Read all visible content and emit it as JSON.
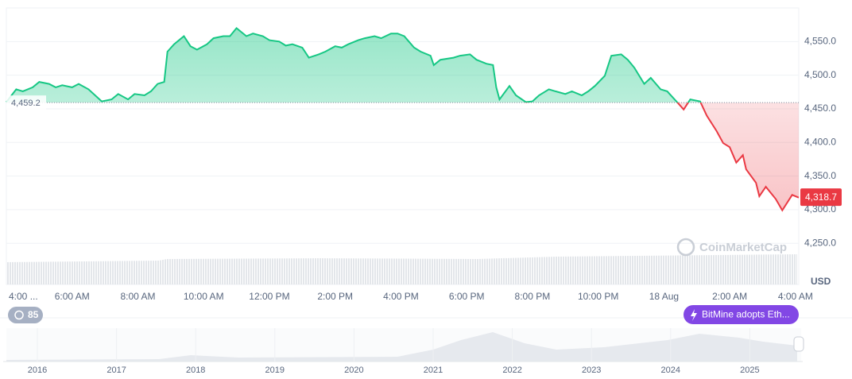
{
  "chart_data": {
    "type": "line",
    "x": [
      0,
      0.3,
      0.5,
      0.8,
      1.0,
      1.3,
      1.5,
      1.7,
      2.0,
      2.2,
      2.5,
      2.7,
      2.9,
      3.2,
      3.4,
      3.7,
      3.9,
      4.2,
      4.4,
      4.6,
      4.8,
      4.9,
      5.1,
      5.4,
      5.6,
      5.8,
      6.1,
      6.3,
      6.6,
      6.8,
      7.0,
      7.3,
      7.5,
      7.8,
      8.0,
      8.3,
      8.5,
      8.7,
      9.0,
      9.2,
      9.5,
      9.7,
      10.0,
      10.2,
      10.4,
      10.7,
      10.9,
      11.2,
      11.4,
      11.7,
      11.9,
      12.1,
      12.4,
      12.6,
      12.9,
      13.0,
      13.2,
      13.6,
      13.8,
      14.1,
      14.3,
      14.6,
      14.8,
      14.9,
      15.0,
      15.3,
      15.5,
      15.8,
      16.0,
      16.2,
      16.5,
      16.7,
      17.0,
      17.2,
      17.5,
      17.7,
      17.9,
      18.2,
      18.4,
      18.7,
      18.9,
      19.1,
      19.4,
      19.6,
      19.9,
      20.1,
      20.4,
      20.6,
      20.8,
      21.1,
      21.3,
      21.6,
      21.8,
      22.0,
      22.2,
      22.4,
      22.5,
      22.8,
      22.9,
      23.1,
      23.4,
      23.6,
      23.9,
      24.1
    ],
    "values": [
      4460,
      4479,
      4476,
      4482,
      4490,
      4487,
      4482,
      4485,
      4482,
      4487,
      4479,
      4470,
      4461,
      4464,
      4472,
      4464,
      4472,
      4470,
      4476,
      4487,
      4490,
      4535,
      4546,
      4558,
      4543,
      4538,
      4546,
      4555,
      4558,
      4558,
      4570,
      4558,
      4562,
      4558,
      4552,
      4550,
      4544,
      4546,
      4541,
      4526,
      4531,
      4535,
      4543,
      4541,
      4546,
      4552,
      4555,
      4558,
      4555,
      4562,
      4562,
      4558,
      4541,
      4535,
      4529,
      4515,
      4523,
      4526,
      4529,
      4531,
      4523,
      4517,
      4515,
      4482,
      4464,
      4484,
      4470,
      4460,
      4461,
      4470,
      4479,
      4476,
      4472,
      4476,
      4470,
      4476,
      4484,
      4499,
      4529,
      4531,
      4523,
      4511,
      4487,
      4496,
      4479,
      4476,
      4460,
      4449,
      4464,
      4461,
      4440,
      4417,
      4399,
      4393,
      4370,
      4381,
      4360,
      4340,
      4320,
      4334,
      4316,
      4299,
      4322,
      4318
    ],
    "up_color": "#16c784",
    "down_color": "#ea3943",
    "baseline": {
      "value": 4459.2,
      "label": "4,459.2"
    },
    "last_price": {
      "value": 4318.7,
      "label": "4,318.7"
    },
    "xlim": [
      0,
      24.1
    ],
    "xticks": [
      {
        "value": 0,
        "label": "4:00 ..."
      },
      {
        "value": 2,
        "label": "6:00 AM"
      },
      {
        "value": 4,
        "label": "8:00 AM"
      },
      {
        "value": 6,
        "label": "10:00 AM"
      },
      {
        "value": 8,
        "label": "12:00 PM"
      },
      {
        "value": 10,
        "label": "2:00 PM"
      },
      {
        "value": 12,
        "label": "4:00 PM"
      },
      {
        "value": 14,
        "label": "6:00 PM"
      },
      {
        "value": 16,
        "label": "8:00 PM"
      },
      {
        "value": 18,
        "label": "10:00 PM"
      },
      {
        "value": 20,
        "label": "18 Aug"
      },
      {
        "value": 22,
        "label": "2:00 AM"
      },
      {
        "value": 24,
        "label": "4:00 AM"
      }
    ],
    "ylim": [
      4190,
      4600
    ],
    "yticks": [
      {
        "value": 4250,
        "label": "4,250.0"
      },
      {
        "value": 4300,
        "label": "4,300.0"
      },
      {
        "value": 4350,
        "label": "4,350.0"
      },
      {
        "value": 4400,
        "label": "4,400.0"
      },
      {
        "value": 4450,
        "label": "4,450.0"
      },
      {
        "value": 4500,
        "label": "4,500.0"
      },
      {
        "value": 4550,
        "label": "4,550.0"
      }
    ],
    "grid": true,
    "unit": "USD",
    "watermark": "CoinMarketCap"
  },
  "badge": "85",
  "event": "BitMine adopts Eth...",
  "navigator": {
    "years": [
      "2016",
      "2017",
      "2018",
      "2019",
      "2020",
      "2021",
      "2022",
      "2023",
      "2024",
      "2025"
    ]
  }
}
